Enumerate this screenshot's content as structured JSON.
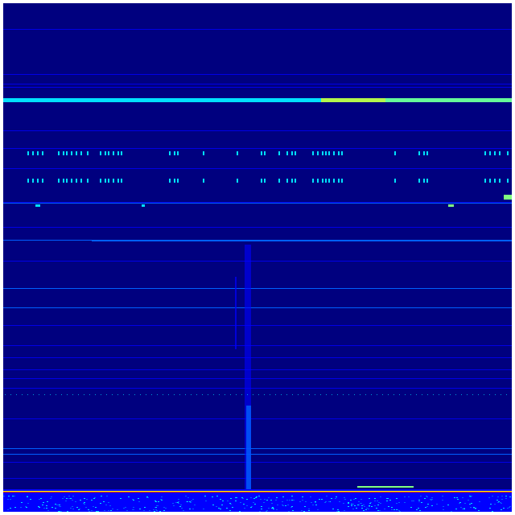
{
  "spectrogram": {
    "background_color": "#00007f",
    "colormap": "jet",
    "palette": {
      "low": "#00007f",
      "blue": "#0000ff",
      "bright_blue": "#0060ff",
      "cyan": "#00e0ff",
      "green": "#80ff80",
      "yellow": "#ffff00",
      "red": "#ff0000"
    }
  }
}
